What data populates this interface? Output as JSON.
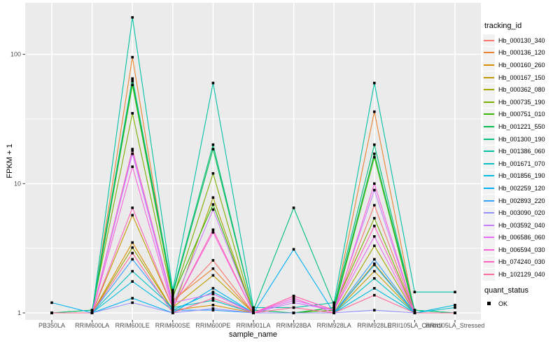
{
  "figure": {
    "background": "#FFFFFF",
    "panel_bg": "#EBEBEB",
    "grid_color": "#FFFFFF",
    "tick_mark_color": "#333333",
    "tick_label_color": "#4D4D4D",
    "title_color": "#000000",
    "point_color": "#000000"
  },
  "chart_data": {
    "type": "line",
    "title": "",
    "xlabel": "sample_name",
    "ylabel": "FPKM + 1",
    "y_scale": "log10",
    "grid": true,
    "legend_position": "right",
    "y_ticks": [
      {
        "label": "1",
        "value": 1
      },
      {
        "label": "10",
        "value": 10
      },
      {
        "label": "100",
        "value": 100
      }
    ],
    "y_minor_values": [
      3.162,
      31.623
    ],
    "ylim": [
      0.93,
      260
    ],
    "categories": [
      "PB350LA",
      "RRIM600LA",
      "RRIM600LE",
      "RRIM600SE",
      "RRIM600PE",
      "RRIM901LA",
      "RRIM928BA",
      "RRIM928LA",
      "RRIM928LE",
      "RRII105LA_Control",
      "RRII105LA_Stressed"
    ],
    "series": [
      {
        "name": "Hb_000130_340",
        "color": "#F8766D",
        "values": [
          1.0,
          1.0,
          18.5,
          1.2,
          2.55,
          1.0,
          1.35,
          1.05,
          6.8,
          1.0,
          1.0
        ]
      },
      {
        "name": "Hb_000136_120",
        "color": "#EA8331",
        "values": [
          1.0,
          1.0,
          95,
          1.25,
          2.2,
          1.0,
          1.0,
          1.1,
          36,
          1.0,
          1.0
        ]
      },
      {
        "name": "Hb_000160_260",
        "color": "#D89000",
        "values": [
          1.0,
          1.0,
          3.5,
          1.05,
          1.15,
          1.0,
          1.0,
          1.0,
          2.4,
          1.0,
          1.0
        ]
      },
      {
        "name": "Hb_000167_150",
        "color": "#C09B00",
        "values": [
          1.0,
          1.0,
          5.7,
          1.1,
          1.95,
          1.0,
          1.0,
          1.0,
          2.1,
          1.0,
          1.0
        ]
      },
      {
        "name": "Hb_000362_080",
        "color": "#A3A500",
        "values": [
          1.0,
          1.0,
          3.2,
          1.05,
          7.8,
          1.0,
          1.0,
          1.0,
          3.3,
          1.0,
          1.0
        ]
      },
      {
        "name": "Hb_000735_190",
        "color": "#7CAE00",
        "values": [
          1.0,
          1.05,
          35,
          1.3,
          12,
          1.0,
          1.0,
          1.1,
          5.4,
          1.0,
          1.0
        ]
      },
      {
        "name": "Hb_000751_010",
        "color": "#39B600",
        "values": [
          1.0,
          1.0,
          58,
          1.35,
          6.9,
          1.0,
          1.0,
          1.05,
          16,
          1.0,
          1.0
        ]
      },
      {
        "name": "Hb_001221_550",
        "color": "#00BB4E",
        "values": [
          1.0,
          1.0,
          62,
          1.4,
          18.5,
          1.05,
          1.0,
          1.1,
          17,
          1.05,
          1.0
        ]
      },
      {
        "name": "Hb_001300_190",
        "color": "#00BF7D",
        "values": [
          1.0,
          1.05,
          65,
          1.45,
          20,
          1.05,
          6.5,
          1.15,
          20,
          1.05,
          1.0
        ]
      },
      {
        "name": "Hb_001386_060",
        "color": "#00C1A3",
        "values": [
          1.0,
          1.0,
          193,
          1.5,
          60,
          1.1,
          1.1,
          1.2,
          60,
          1.45,
          1.45
        ]
      },
      {
        "name": "Hb_001671_070",
        "color": "#00BFC4",
        "values": [
          1.0,
          1.0,
          2.1,
          1.1,
          1.25,
          1.0,
          1.0,
          1.0,
          1.85,
          1.0,
          1.1
        ]
      },
      {
        "name": "Hb_001856_190",
        "color": "#00BAE0",
        "values": [
          1.0,
          1.0,
          1.75,
          1.05,
          1.45,
          1.0,
          1.0,
          1.0,
          1.55,
          1.0,
          1.15
        ]
      },
      {
        "name": "Hb_002259_120",
        "color": "#00B0F6",
        "values": [
          1.2,
          1.0,
          1.3,
          1.0,
          1.55,
          1.0,
          3.1,
          1.0,
          2.35,
          1.0,
          1.0
        ]
      },
      {
        "name": "Hb_002893_220",
        "color": "#35A2FF",
        "values": [
          1.0,
          1.0,
          2.6,
          1.05,
          1.05,
          1.0,
          1.0,
          1.0,
          2.6,
          1.0,
          1.0
        ]
      },
      {
        "name": "Hb_003090_020",
        "color": "#9590FF",
        "values": [
          1.0,
          1.0,
          1.2,
          1.0,
          1.08,
          1.0,
          1.0,
          1.0,
          1.05,
          1.0,
          1.0
        ]
      },
      {
        "name": "Hb_003592_040",
        "color": "#C77CFF",
        "values": [
          1.0,
          1.0,
          17,
          1.15,
          6.3,
          1.0,
          1.2,
          1.05,
          8.9,
          1.0,
          1.0
        ]
      },
      {
        "name": "Hb_006586_060",
        "color": "#E76BF3",
        "values": [
          1.0,
          1.0,
          18,
          1.2,
          1.4,
          1.0,
          1.25,
          1.05,
          3.9,
          1.0,
          1.0
        ]
      },
      {
        "name": "Hb_006594_030",
        "color": "#FA62DB",
        "values": [
          1.0,
          1.0,
          13.5,
          1.1,
          4.2,
          1.0,
          1.3,
          1.0,
          10,
          1.0,
          1.0
        ]
      },
      {
        "name": "Hb_074240_030",
        "color": "#FF62BC",
        "values": [
          1.0,
          1.0,
          6.5,
          1.1,
          4.4,
          1.0,
          1.35,
          1.05,
          4.7,
          1.0,
          1.0
        ]
      },
      {
        "name": "Hb_102129_040",
        "color": "#FF6A98",
        "values": [
          1.0,
          1.0,
          2.9,
          1.0,
          1.3,
          1.0,
          1.1,
          1.0,
          1.37,
          1.0,
          1.0
        ]
      }
    ]
  },
  "legend": {
    "tracking_title": "tracking_id",
    "quant_title": "quant_status",
    "quant_items": [
      {
        "label": "OK"
      }
    ],
    "key_bg": "#F2F2F2"
  }
}
